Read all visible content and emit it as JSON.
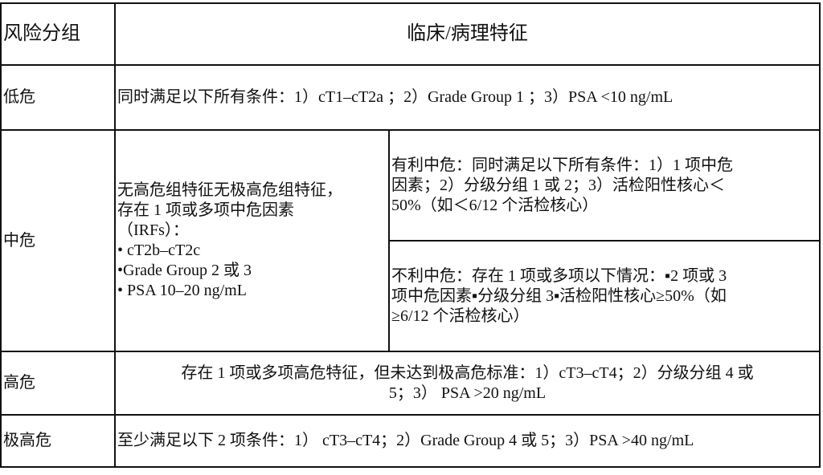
{
  "header": {
    "group": "风险分组",
    "features": "临床/病理特征"
  },
  "rows": {
    "low": {
      "group": "低危",
      "lines": [
        "同时满足以下所有条件：1）cT1–cT2a ；2）Grade Group 1 ；3）PSA <10 ng/mL"
      ]
    },
    "intermediate": {
      "group": "中危",
      "general_lines": [
        "无高危组特征无极高危组特征，",
        "存在 1 项或多项中危因素",
        "（IRFs）：",
        "• cT2b–cT2c",
        "•Grade Group  2 或 3",
        "• PSA 10–20 ng/mL"
      ],
      "favorable_lines": [
        "有利中危：同时满足以下所有条件：1）1 项中危",
        "因素；2）分级分组 1 或 2；3）活检阳性核心＜",
        "50%（如＜6/12 个活检核心）"
      ],
      "unfavorable_lines": [
        "不利中危：存在 1 项或多项以下情况：▪2 项或 3",
        "项中危因素▪分级分组 3▪活检阳性核心≥50%（如",
        "≥6/12 个活检核心）"
      ]
    },
    "high": {
      "group": "高危",
      "lines": [
        "存在 1 项或多项高危特征，但未达到极高危标准：1）cT3–cT4；2）分级分组 4 或",
        "5；3） PSA >20 ng/mL"
      ]
    },
    "very_high": {
      "group": "极高危",
      "lines": [
        "至少满足以下 2 项条件：1） cT3–cT4；2）Grade Group  4 或 5；3）PSA >40 ng/mL"
      ]
    }
  }
}
